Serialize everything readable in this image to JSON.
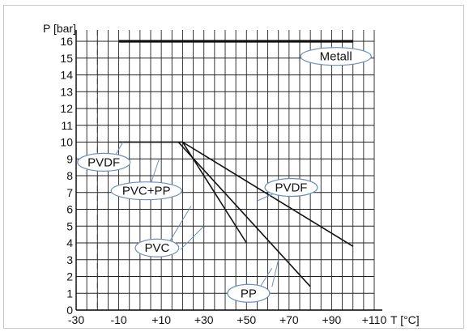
{
  "chart_data": {
    "type": "line",
    "ylabel": "P [bar]",
    "xlabel": "T [°C]",
    "x_ticks": [
      "-30",
      "-10",
      "+10",
      "+30",
      "+50",
      "+70",
      "+90",
      "+110"
    ],
    "y_ticks": [
      "0",
      "1",
      "2",
      "3",
      "4",
      "5",
      "6",
      "7",
      "8",
      "9",
      "10",
      "11",
      "12",
      "13",
      "14",
      "15",
      "16"
    ],
    "xlim": [
      -30,
      110
    ],
    "ylim": [
      0,
      16
    ],
    "grid": true,
    "reference_line_x": -20,
    "series": [
      {
        "name": "Metall",
        "x": [
          -10,
          100
        ],
        "y": [
          16,
          16
        ]
      },
      {
        "name": "PVDF",
        "x": [
          -10,
          20,
          100
        ],
        "y": [
          10,
          10,
          3.8
        ]
      },
      {
        "name": "PVC+PP",
        "x": [
          -10,
          20
        ],
        "y": [
          10,
          10
        ]
      },
      {
        "name": "PVC",
        "x": [
          20,
          50
        ],
        "y": [
          10,
          4
        ]
      },
      {
        "name": "PP",
        "x": [
          18,
          80
        ],
        "y": [
          10,
          1.4
        ]
      }
    ],
    "labels": [
      {
        "text": "Metall",
        "x": 92,
        "y": 15.1
      },
      {
        "text": "PVDF",
        "x": -17,
        "y": 8.8
      },
      {
        "text": "PVC+PP",
        "x": 3,
        "y": 7.1
      },
      {
        "text": "PVDF",
        "x": 71,
        "y": 7.3
      },
      {
        "text": "PVC",
        "x": 8,
        "y": 3.7
      },
      {
        "text": "PP",
        "x": 51,
        "y": 1.0
      }
    ]
  }
}
